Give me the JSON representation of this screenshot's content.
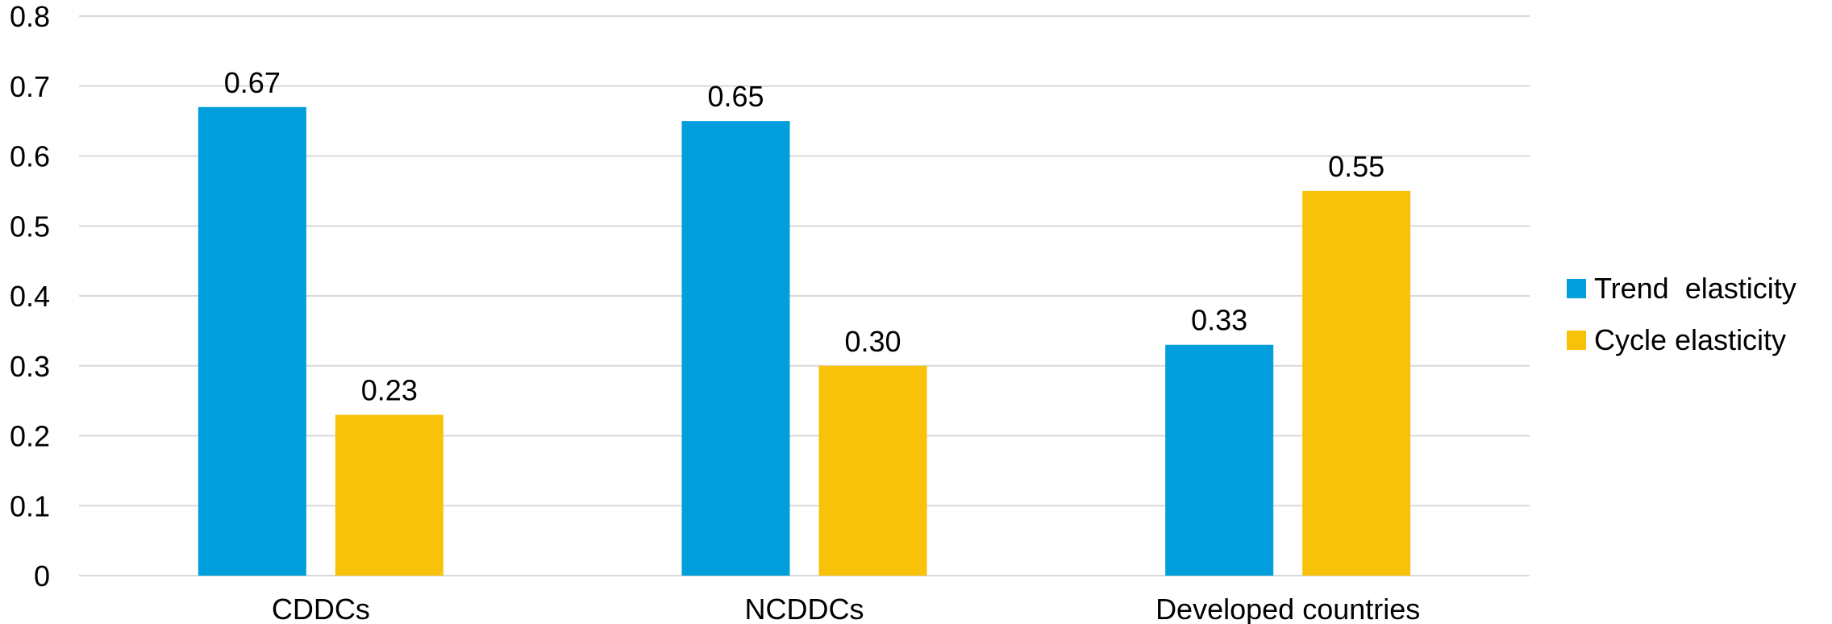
{
  "chart_data": {
    "type": "bar",
    "categories": [
      "CDDCs",
      "NCDDCs",
      "Developed countries"
    ],
    "series": [
      {
        "name": "Trend  elasticity",
        "values": [
          0.67,
          0.65,
          0.33
        ],
        "labels": [
          "0.67",
          "0.65",
          "0.33"
        ],
        "color": "#009FDC"
      },
      {
        "name": "Cycle elasticity",
        "values": [
          0.23,
          0.3,
          0.55
        ],
        "labels": [
          "0.23",
          "0.30",
          "0.55"
        ],
        "color": "#F9C20A"
      }
    ],
    "ylim": [
      0,
      0.8
    ],
    "yticks": [
      "0",
      "0.1",
      "0.2",
      "0.3",
      "0.4",
      "0.5",
      "0.6",
      "0.7",
      "0.8"
    ],
    "grid": true,
    "legend": "right"
  }
}
